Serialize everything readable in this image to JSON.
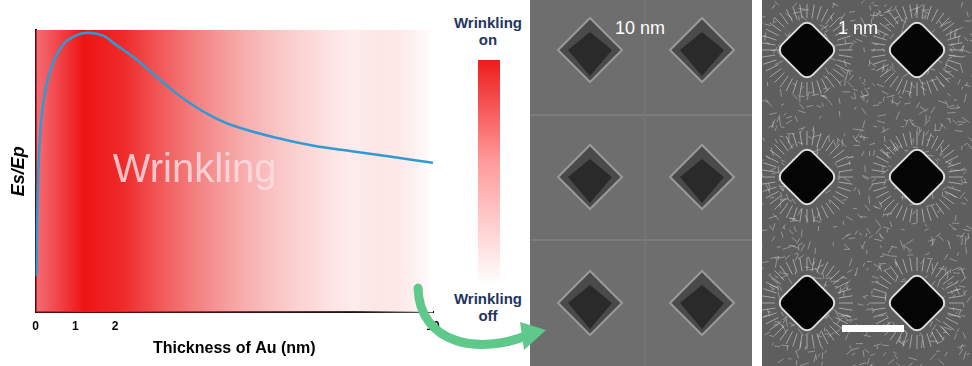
{
  "chart_data": {
    "type": "line",
    "x_label": "Thickness of Au (nm)",
    "y_label": "Es/Ep",
    "annotations": [
      "Wrinkling"
    ],
    "x": [
      0.02,
      0.05,
      0.1,
      0.2,
      0.4,
      0.7,
      1.0,
      1.3,
      1.7,
      2.0,
      2.5,
      3.0,
      3.5,
      4.0,
      4.5,
      5.0,
      6.0,
      7.0,
      8.0,
      9.0,
      10.0
    ],
    "values": [
      0.13,
      0.4,
      0.6,
      0.75,
      0.87,
      0.95,
      0.98,
      0.99,
      0.98,
      0.95,
      0.9,
      0.84,
      0.78,
      0.73,
      0.69,
      0.66,
      0.62,
      0.59,
      0.57,
      0.55,
      0.53
    ],
    "color": "#2e9bd6",
    "xlim": [
      0,
      10
    ],
    "xticks": [
      0,
      1,
      2,
      10
    ],
    "ylim": [
      0,
      1
    ],
    "yticks": [],
    "tick_labels": "x",
    "grid": false
  },
  "colorbar": {
    "top_label": "Wrinkling on",
    "bottom_label": "Wrinkling off"
  },
  "images": [
    {
      "label": "10 nm"
    },
    {
      "label": "1 nm"
    }
  ]
}
